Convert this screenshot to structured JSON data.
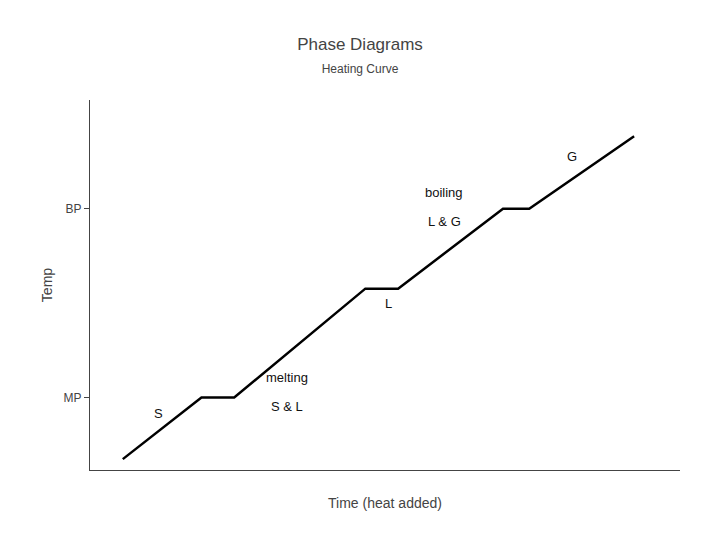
{
  "chart_data": {
    "type": "line",
    "title": "Phase Diagrams",
    "subtitle": "Heating Curve",
    "x_label": "Time (heat added)",
    "y_label": "Temp",
    "x": [
      1.0,
      2.2,
      2.7,
      4.7,
      5.2,
      6.8,
      7.2,
      8.8
    ],
    "values": [
      0.3,
      2.0,
      2.0,
      5.0,
      5.0,
      7.2,
      7.2,
      9.2
    ],
    "color": "#000000",
    "xlim": [
      0.5,
      9.5
    ],
    "ylim": [
      0.0,
      10.2
    ],
    "yticks": [
      {
        "value": 2.0,
        "label": "MP"
      },
      {
        "value": 7.2,
        "label": "BP"
      }
    ],
    "tick_labels": "y",
    "grid": false,
    "annotations": [
      {
        "text": "S",
        "x": 1.55,
        "y": 1.55
      },
      {
        "text": "melting",
        "x": 3.5,
        "y": 2.55
      },
      {
        "text": "S & L",
        "x": 3.5,
        "y": 1.75
      },
      {
        "text": "L",
        "x": 5.05,
        "y": 4.6
      },
      {
        "text": "boiling",
        "x": 5.9,
        "y": 7.65
      },
      {
        "text": "L & G",
        "x": 5.9,
        "y": 6.85
      },
      {
        "text": "G",
        "x": 7.85,
        "y": 8.65
      }
    ]
  }
}
